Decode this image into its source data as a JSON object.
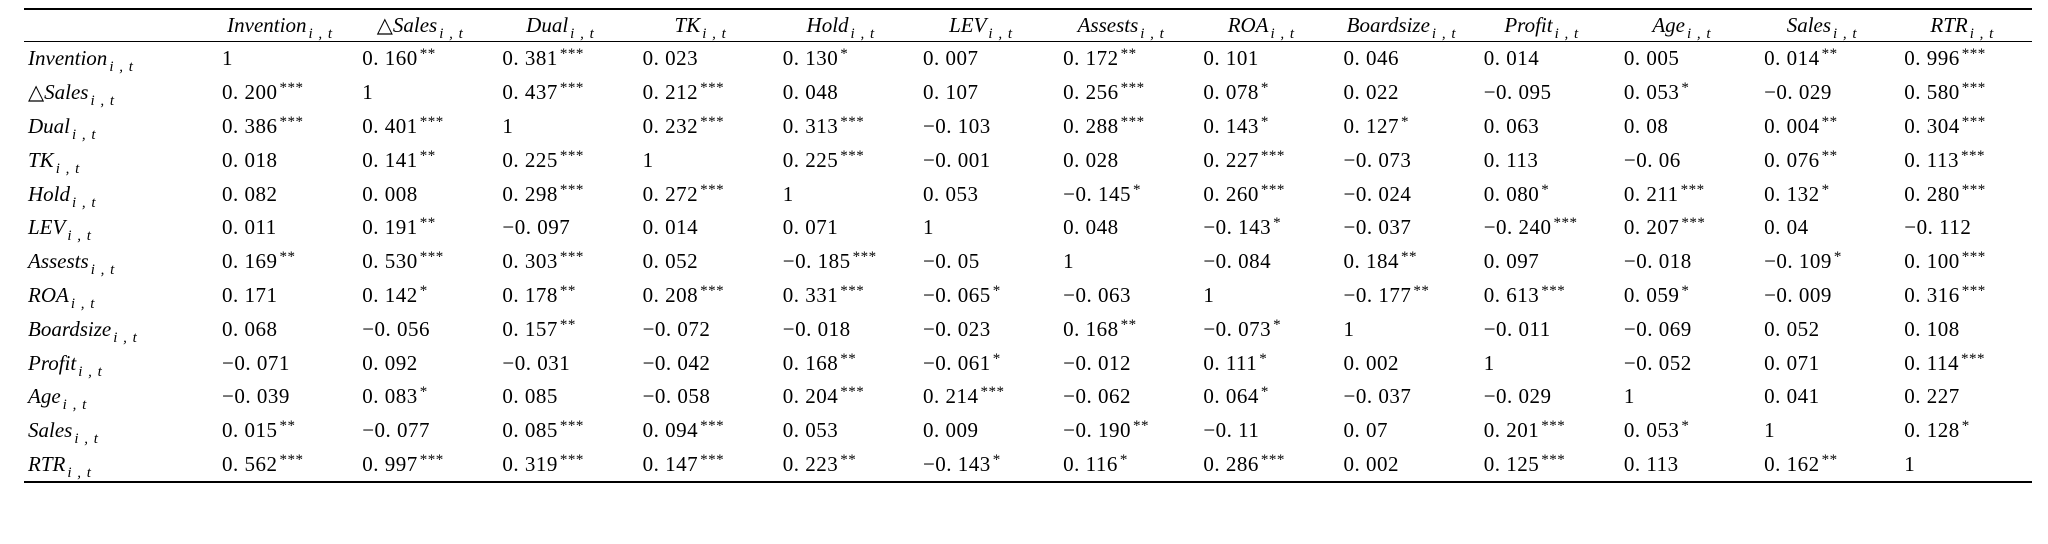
{
  "table": {
    "corner": "",
    "columns": [
      {
        "name": "Invention",
        "sub": "i , t"
      },
      {
        "name": "△Sales",
        "sub": "i , t"
      },
      {
        "name": "Dual",
        "sub": "i , t"
      },
      {
        "name": "TK",
        "sub": "i , t"
      },
      {
        "name": "Hold",
        "sub": "i , t"
      },
      {
        "name": "LEV",
        "sub": "i , t"
      },
      {
        "name": "Assests",
        "sub": "i , t"
      },
      {
        "name": "ROA",
        "sub": "i , t"
      },
      {
        "name": "Boardsize",
        "sub": "i , t"
      },
      {
        "name": "Profit",
        "sub": "i , t"
      },
      {
        "name": "Age",
        "sub": "i , t"
      },
      {
        "name": "Sales",
        "sub": "i , t"
      },
      {
        "name": "RTR",
        "sub": "i , t"
      }
    ],
    "rows": [
      {
        "name": "Invention",
        "sub": "i , t",
        "cells": [
          {
            "v": "1",
            "s": ""
          },
          {
            "v": "0. 160",
            "s": "**"
          },
          {
            "v": "0. 381",
            "s": "***"
          },
          {
            "v": "0. 023",
            "s": ""
          },
          {
            "v": "0. 130",
            "s": "*"
          },
          {
            "v": "0. 007",
            "s": ""
          },
          {
            "v": "0. 172",
            "s": "**"
          },
          {
            "v": "0. 101",
            "s": ""
          },
          {
            "v": "0. 046",
            "s": ""
          },
          {
            "v": "0. 014",
            "s": ""
          },
          {
            "v": "0. 005",
            "s": ""
          },
          {
            "v": "0. 014",
            "s": "**"
          },
          {
            "v": "0. 996",
            "s": "***"
          }
        ]
      },
      {
        "name": "△Sales",
        "sub": "i , t",
        "cells": [
          {
            "v": "0. 200",
            "s": "***"
          },
          {
            "v": "1",
            "s": ""
          },
          {
            "v": "0. 437",
            "s": "***"
          },
          {
            "v": "0. 212",
            "s": "***"
          },
          {
            "v": "0. 048",
            "s": ""
          },
          {
            "v": "0. 107",
            "s": ""
          },
          {
            "v": "0. 256",
            "s": "***"
          },
          {
            "v": "0. 078",
            "s": "*"
          },
          {
            "v": "0. 022",
            "s": ""
          },
          {
            "v": "−0. 095",
            "s": ""
          },
          {
            "v": "0. 053",
            "s": "*"
          },
          {
            "v": "−0. 029",
            "s": ""
          },
          {
            "v": "0. 580",
            "s": "***"
          }
        ]
      },
      {
        "name": "Dual",
        "sub": "i , t",
        "cells": [
          {
            "v": "0. 386",
            "s": "***"
          },
          {
            "v": "0. 401",
            "s": "***"
          },
          {
            "v": "1",
            "s": ""
          },
          {
            "v": "0. 232",
            "s": "***"
          },
          {
            "v": "0. 313",
            "s": "***"
          },
          {
            "v": "−0. 103",
            "s": ""
          },
          {
            "v": "0. 288",
            "s": "***"
          },
          {
            "v": "0. 143",
            "s": "*"
          },
          {
            "v": "0. 127",
            "s": "*"
          },
          {
            "v": "0. 063",
            "s": ""
          },
          {
            "v": "0. 08",
            "s": ""
          },
          {
            "v": "0. 004",
            "s": "**"
          },
          {
            "v": "0. 304",
            "s": "***"
          }
        ]
      },
      {
        "name": "TK",
        "sub": "i , t",
        "cells": [
          {
            "v": "0. 018",
            "s": ""
          },
          {
            "v": "0. 141",
            "s": "**"
          },
          {
            "v": "0. 225",
            "s": "***"
          },
          {
            "v": "1",
            "s": ""
          },
          {
            "v": "0. 225",
            "s": "***"
          },
          {
            "v": "−0. 001",
            "s": ""
          },
          {
            "v": "0. 028",
            "s": ""
          },
          {
            "v": "0. 227",
            "s": "***"
          },
          {
            "v": "−0. 073",
            "s": ""
          },
          {
            "v": "0. 113",
            "s": ""
          },
          {
            "v": "−0. 06",
            "s": ""
          },
          {
            "v": "0. 076",
            "s": "**"
          },
          {
            "v": "0. 113",
            "s": "***"
          }
        ]
      },
      {
        "name": "Hold",
        "sub": "i , t",
        "cells": [
          {
            "v": "0. 082",
            "s": ""
          },
          {
            "v": "0. 008",
            "s": ""
          },
          {
            "v": "0. 298",
            "s": "***"
          },
          {
            "v": "0. 272",
            "s": "***"
          },
          {
            "v": "1",
            "s": ""
          },
          {
            "v": "0. 053",
            "s": ""
          },
          {
            "v": "−0. 145",
            "s": "*"
          },
          {
            "v": "0. 260",
            "s": "***"
          },
          {
            "v": "−0. 024",
            "s": ""
          },
          {
            "v": "0. 080",
            "s": "*"
          },
          {
            "v": "0. 211",
            "s": "***"
          },
          {
            "v": "0. 132",
            "s": "*"
          },
          {
            "v": "0. 280",
            "s": "***"
          }
        ]
      },
      {
        "name": "LEV",
        "sub": "i , t",
        "cells": [
          {
            "v": "0. 011",
            "s": ""
          },
          {
            "v": "0. 191",
            "s": "**"
          },
          {
            "v": "−0. 097",
            "s": ""
          },
          {
            "v": "0. 014",
            "s": ""
          },
          {
            "v": "0. 071",
            "s": ""
          },
          {
            "v": "1",
            "s": ""
          },
          {
            "v": "0. 048",
            "s": ""
          },
          {
            "v": "−0. 143",
            "s": "*"
          },
          {
            "v": "−0. 037",
            "s": ""
          },
          {
            "v": "−0. 240",
            "s": "***"
          },
          {
            "v": "0. 207",
            "s": "***"
          },
          {
            "v": "0. 04",
            "s": ""
          },
          {
            "v": "−0. 112",
            "s": ""
          }
        ]
      },
      {
        "name": "Assests",
        "sub": "i , t",
        "cells": [
          {
            "v": "0. 169",
            "s": "**"
          },
          {
            "v": "0. 530",
            "s": "***"
          },
          {
            "v": "0. 303",
            "s": "***"
          },
          {
            "v": "0. 052",
            "s": ""
          },
          {
            "v": "−0. 185",
            "s": "***"
          },
          {
            "v": "−0. 05",
            "s": ""
          },
          {
            "v": "1",
            "s": ""
          },
          {
            "v": "−0. 084",
            "s": ""
          },
          {
            "v": "0. 184",
            "s": "**"
          },
          {
            "v": "0. 097",
            "s": ""
          },
          {
            "v": "−0. 018",
            "s": ""
          },
          {
            "v": "−0. 109",
            "s": "*"
          },
          {
            "v": "0. 100",
            "s": "***"
          }
        ]
      },
      {
        "name": "ROA",
        "sub": "i , t",
        "cells": [
          {
            "v": "0. 171",
            "s": ""
          },
          {
            "v": "0. 142",
            "s": "*"
          },
          {
            "v": "0. 178",
            "s": "**"
          },
          {
            "v": "0. 208",
            "s": "***"
          },
          {
            "v": "0. 331",
            "s": "***"
          },
          {
            "v": "−0. 065",
            "s": "*"
          },
          {
            "v": "−0. 063",
            "s": ""
          },
          {
            "v": "1",
            "s": ""
          },
          {
            "v": "−0. 177",
            "s": "**"
          },
          {
            "v": "0. 613",
            "s": "***"
          },
          {
            "v": "0. 059",
            "s": "*"
          },
          {
            "v": "−0. 009",
            "s": ""
          },
          {
            "v": "0. 316",
            "s": "***"
          }
        ]
      },
      {
        "name": "Boardsize",
        "sub": "i , t",
        "cells": [
          {
            "v": "0. 068",
            "s": ""
          },
          {
            "v": "−0. 056",
            "s": ""
          },
          {
            "v": "0. 157",
            "s": "**"
          },
          {
            "v": "−0. 072",
            "s": ""
          },
          {
            "v": "−0. 018",
            "s": ""
          },
          {
            "v": "−0. 023",
            "s": ""
          },
          {
            "v": "0. 168",
            "s": "**"
          },
          {
            "v": "−0. 073",
            "s": "*"
          },
          {
            "v": "1",
            "s": ""
          },
          {
            "v": "−0. 011",
            "s": ""
          },
          {
            "v": "−0. 069",
            "s": ""
          },
          {
            "v": "0. 052",
            "s": ""
          },
          {
            "v": "0. 108",
            "s": ""
          }
        ]
      },
      {
        "name": "Profit",
        "sub": "i , t",
        "cells": [
          {
            "v": "−0. 071",
            "s": ""
          },
          {
            "v": "0. 092",
            "s": ""
          },
          {
            "v": "−0. 031",
            "s": ""
          },
          {
            "v": "−0. 042",
            "s": ""
          },
          {
            "v": "0. 168",
            "s": "**"
          },
          {
            "v": "−0. 061",
            "s": "*"
          },
          {
            "v": "−0. 012",
            "s": ""
          },
          {
            "v": "0. 111",
            "s": "*"
          },
          {
            "v": "0. 002",
            "s": ""
          },
          {
            "v": "1",
            "s": ""
          },
          {
            "v": "−0. 052",
            "s": ""
          },
          {
            "v": "0. 071",
            "s": ""
          },
          {
            "v": "0. 114",
            "s": "***"
          }
        ]
      },
      {
        "name": "Age",
        "sub": "i , t",
        "cells": [
          {
            "v": "−0. 039",
            "s": ""
          },
          {
            "v": "0. 083",
            "s": "*"
          },
          {
            "v": "0. 085",
            "s": ""
          },
          {
            "v": "−0. 058",
            "s": ""
          },
          {
            "v": "0. 204",
            "s": "***"
          },
          {
            "v": "0. 214",
            "s": "***"
          },
          {
            "v": "−0. 062",
            "s": ""
          },
          {
            "v": "0. 064",
            "s": "*"
          },
          {
            "v": "−0. 037",
            "s": ""
          },
          {
            "v": "−0. 029",
            "s": ""
          },
          {
            "v": "1",
            "s": ""
          },
          {
            "v": "0. 041",
            "s": ""
          },
          {
            "v": "0. 227",
            "s": ""
          }
        ]
      },
      {
        "name": "Sales",
        "sub": "i , t",
        "cells": [
          {
            "v": "0. 015",
            "s": "**"
          },
          {
            "v": "−0. 077",
            "s": ""
          },
          {
            "v": "0. 085",
            "s": "***"
          },
          {
            "v": "0. 094",
            "s": "***"
          },
          {
            "v": "0. 053",
            "s": ""
          },
          {
            "v": "0. 009",
            "s": ""
          },
          {
            "v": "−0. 190",
            "s": "**"
          },
          {
            "v": "−0. 11",
            "s": ""
          },
          {
            "v": "0. 07",
            "s": ""
          },
          {
            "v": "0. 201",
            "s": "***"
          },
          {
            "v": "0. 053",
            "s": "*"
          },
          {
            "v": "1",
            "s": ""
          },
          {
            "v": "0. 128",
            "s": "*"
          }
        ]
      },
      {
        "name": "RTR",
        "sub": "i , t",
        "cells": [
          {
            "v": "0. 562",
            "s": "***"
          },
          {
            "v": "0. 997",
            "s": "***"
          },
          {
            "v": "0. 319",
            "s": "***"
          },
          {
            "v": "0. 147",
            "s": "***"
          },
          {
            "v": "0. 223",
            "s": "**"
          },
          {
            "v": "−0. 143",
            "s": "*"
          },
          {
            "v": "0. 116",
            "s": "*"
          },
          {
            "v": "0. 286",
            "s": "***"
          },
          {
            "v": "0. 002",
            "s": ""
          },
          {
            "v": "0. 125",
            "s": "***"
          },
          {
            "v": "0. 113",
            "s": ""
          },
          {
            "v": "0. 162",
            "s": "**"
          },
          {
            "v": "1",
            "s": ""
          }
        ]
      }
    ]
  }
}
